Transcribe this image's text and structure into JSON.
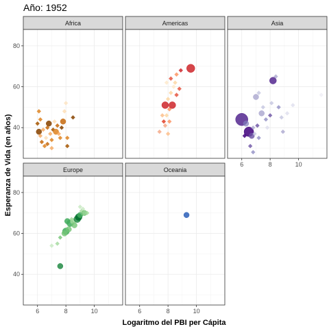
{
  "title": "Año: 1952",
  "chart_data": {
    "type": "scatter",
    "title": "Año: 1952",
    "xlabel": "Logaritmo del PBI per Cápita",
    "ylabel": "Esperanza de Vida (en años)",
    "xlim": [
      5.0,
      12.0
    ],
    "ylim": [
      25,
      88
    ],
    "x_ticks": [
      6,
      8,
      10
    ],
    "y_ticks": [
      40,
      60,
      80
    ],
    "grid": true,
    "facets": [
      {
        "name": "Africa",
        "points": [
          {
            "x": 6.1,
            "y": 48,
            "s": 3,
            "c": "#e08a2c",
            "a": 0.9
          },
          {
            "x": 6.0,
            "y": 42,
            "s": 3,
            "c": "#a85d0c",
            "a": 0.9
          },
          {
            "x": 6.1,
            "y": 38,
            "s": 4,
            "c": "#8c4a0a",
            "a": 0.9
          },
          {
            "x": 6.2,
            "y": 36,
            "s": 3,
            "c": "#f5a65b",
            "a": 0.8
          },
          {
            "x": 6.3,
            "y": 33,
            "s": 3,
            "c": "#c9711a",
            "a": 0.9
          },
          {
            "x": 6.5,
            "y": 31,
            "s": 3,
            "c": "#e08a2c",
            "a": 0.9
          },
          {
            "x": 6.4,
            "y": 39,
            "s": 3,
            "c": "#f5a65b",
            "a": 0.8
          },
          {
            "x": 6.6,
            "y": 35,
            "s": 3,
            "c": "#fdd9a8",
            "a": 0.7
          },
          {
            "x": 6.7,
            "y": 40,
            "s": 3,
            "c": "#c9711a",
            "a": 0.9
          },
          {
            "x": 6.8,
            "y": 42,
            "s": 4,
            "c": "#8c4a0a",
            "a": 0.9
          },
          {
            "x": 6.9,
            "y": 37,
            "s": 3,
            "c": "#f5a65b",
            "a": 0.8
          },
          {
            "x": 7.0,
            "y": 34,
            "s": 3,
            "c": "#e08a2c",
            "a": 0.9
          },
          {
            "x": 7.1,
            "y": 39,
            "s": 3,
            "c": "#a85d0c",
            "a": 0.9
          },
          {
            "x": 7.2,
            "y": 43,
            "s": 3,
            "c": "#fdd9a8",
            "a": 0.7
          },
          {
            "x": 7.3,
            "y": 38,
            "s": 4,
            "c": "#e08a2c",
            "a": 0.9
          },
          {
            "x": 7.4,
            "y": 41,
            "s": 3,
            "c": "#c9711a",
            "a": 0.9
          },
          {
            "x": 7.5,
            "y": 37,
            "s": 3,
            "c": "#f5a65b",
            "a": 0.8
          },
          {
            "x": 7.6,
            "y": 35,
            "s": 3,
            "c": "#e08a2c",
            "a": 0.9
          },
          {
            "x": 7.7,
            "y": 40,
            "s": 3,
            "c": "#8c4a0a",
            "a": 0.9
          },
          {
            "x": 7.8,
            "y": 43,
            "s": 4,
            "c": "#c9711a",
            "a": 0.9
          },
          {
            "x": 7.9,
            "y": 48,
            "s": 3,
            "c": "#fdd9a8",
            "a": 0.7
          },
          {
            "x": 8.0,
            "y": 52,
            "s": 3,
            "c": "#fde0b8",
            "a": 0.7
          },
          {
            "x": 8.1,
            "y": 35,
            "s": 3,
            "c": "#e08a2c",
            "a": 0.9
          },
          {
            "x": 8.1,
            "y": 31,
            "s": 3,
            "c": "#a85d0c",
            "a": 0.9
          },
          {
            "x": 8.5,
            "y": 45,
            "s": 3,
            "c": "#8c4a0a",
            "a": 0.9
          },
          {
            "x": 6.7,
            "y": 32,
            "s": 3,
            "c": "#c9711a",
            "a": 0.9
          },
          {
            "x": 7.0,
            "y": 30,
            "s": 3,
            "c": "#f5a65b",
            "a": 0.8
          },
          {
            "x": 6.2,
            "y": 44,
            "s": 3,
            "c": "#e08a2c",
            "a": 0.9
          }
        ]
      },
      {
        "name": "Americas",
        "points": [
          {
            "x": 7.4,
            "y": 38,
            "s": 3,
            "c": "#f4a582",
            "a": 0.8
          },
          {
            "x": 7.7,
            "y": 43,
            "s": 3,
            "c": "#e34a33",
            "a": 0.9
          },
          {
            "x": 7.8,
            "y": 41,
            "s": 3,
            "c": "#f4a582",
            "a": 0.8
          },
          {
            "x": 7.9,
            "y": 46,
            "s": 3,
            "c": "#fdd49e",
            "a": 0.8
          },
          {
            "x": 7.8,
            "y": 51,
            "s": 5,
            "c": "#cb181d",
            "a": 0.8
          },
          {
            "x": 8.0,
            "y": 54,
            "s": 3,
            "c": "#fdd49e",
            "a": 0.8
          },
          {
            "x": 8.1,
            "y": 49,
            "s": 3,
            "c": "#fc8d59",
            "a": 0.8
          },
          {
            "x": 8.2,
            "y": 57,
            "s": 3,
            "c": "#fdd49e",
            "a": 0.8
          },
          {
            "x": 8.3,
            "y": 51,
            "s": 5,
            "c": "#cb181d",
            "a": 0.8
          },
          {
            "x": 8.4,
            "y": 60,
            "s": 3,
            "c": "#fee8c8",
            "a": 0.8
          },
          {
            "x": 8.5,
            "y": 62,
            "s": 3,
            "c": "#fdd49e",
            "a": 0.8
          },
          {
            "x": 8.2,
            "y": 64,
            "s": 3,
            "c": "#e34a33",
            "a": 0.8
          },
          {
            "x": 8.6,
            "y": 66,
            "s": 3,
            "c": "#fc8d59",
            "a": 0.8
          },
          {
            "x": 8.6,
            "y": 56,
            "s": 3,
            "c": "#e34a33",
            "a": 0.8
          },
          {
            "x": 8.8,
            "y": 59,
            "s": 3,
            "c": "#e34a33",
            "a": 0.8
          },
          {
            "x": 8.1,
            "y": 43,
            "s": 3,
            "c": "#fc8d59",
            "a": 0.8
          },
          {
            "x": 7.6,
            "y": 46,
            "s": 3,
            "c": "#fdbb84",
            "a": 0.8
          },
          {
            "x": 8.9,
            "y": 68,
            "s": 3,
            "c": "#cb181d",
            "a": 0.8
          },
          {
            "x": 9.6,
            "y": 69,
            "s": 6,
            "c": "#cb181d",
            "a": 0.8
          },
          {
            "x": 8.0,
            "y": 37,
            "s": 3,
            "c": "#fdbb84",
            "a": 0.8
          },
          {
            "x": 7.9,
            "y": 62,
            "s": 3,
            "c": "#fee8c8",
            "a": 0.8
          }
        ]
      },
      {
        "name": "Asia",
        "points": [
          {
            "x": 6.0,
            "y": 44,
            "s": 9,
            "c": "#54278f",
            "a": 0.85
          },
          {
            "x": 6.5,
            "y": 38,
            "s": 7,
            "c": "#3f007d",
            "a": 0.85
          },
          {
            "x": 6.3,
            "y": 42,
            "s": 4,
            "c": "#807dba",
            "a": 0.7
          },
          {
            "x": 6.7,
            "y": 36,
            "s": 4,
            "c": "#6a51a3",
            "a": 0.8
          },
          {
            "x": 6.8,
            "y": 40,
            "s": 3,
            "c": "#9e9ac8",
            "a": 0.7
          },
          {
            "x": 6.9,
            "y": 37,
            "s": 3,
            "c": "#bcbddc",
            "a": 0.7
          },
          {
            "x": 7.1,
            "y": 41,
            "s": 3,
            "c": "#6a51a3",
            "a": 0.8
          },
          {
            "x": 7.2,
            "y": 35,
            "s": 3,
            "c": "#807dba",
            "a": 0.7
          },
          {
            "x": 7.4,
            "y": 47,
            "s": 4,
            "c": "#9e9ac8",
            "a": 0.7
          },
          {
            "x": 7.5,
            "y": 50,
            "s": 3,
            "c": "#bcbddc",
            "a": 0.7
          },
          {
            "x": 7.0,
            "y": 55,
            "s": 4,
            "c": "#9e9ac8",
            "a": 0.7
          },
          {
            "x": 7.2,
            "y": 57,
            "s": 3,
            "c": "#bcbddc",
            "a": 0.7
          },
          {
            "x": 7.7,
            "y": 44,
            "s": 3,
            "c": "#807dba",
            "a": 0.7
          },
          {
            "x": 7.8,
            "y": 40,
            "s": 3,
            "c": "#dadaeb",
            "a": 0.7
          },
          {
            "x": 8.0,
            "y": 46,
            "s": 3,
            "c": "#6a51a3",
            "a": 0.8
          },
          {
            "x": 8.1,
            "y": 52,
            "s": 3,
            "c": "#bcbddc",
            "a": 0.7
          },
          {
            "x": 8.2,
            "y": 63,
            "s": 5,
            "c": "#54278f",
            "a": 0.85
          },
          {
            "x": 8.4,
            "y": 65,
            "s": 3,
            "c": "#9e9ac8",
            "a": 0.7
          },
          {
            "x": 8.6,
            "y": 50,
            "s": 3,
            "c": "#807dba",
            "a": 0.7
          },
          {
            "x": 8.8,
            "y": 45,
            "s": 3,
            "c": "#bcbddc",
            "a": 0.7
          },
          {
            "x": 9.2,
            "y": 47,
            "s": 3,
            "c": "#dadaeb",
            "a": 0.7
          },
          {
            "x": 9.6,
            "y": 51,
            "s": 3,
            "c": "#dadaeb",
            "a": 0.7
          },
          {
            "x": 6.6,
            "y": 31,
            "s": 3,
            "c": "#6a51a3",
            "a": 0.8
          },
          {
            "x": 6.8,
            "y": 28,
            "s": 3,
            "c": "#807dba",
            "a": 0.7
          },
          {
            "x": 6.2,
            "y": 36,
            "s": 3,
            "c": "#3f007d",
            "a": 0.85
          },
          {
            "x": 8.9,
            "y": 38,
            "s": 3,
            "c": "#9e9ac8",
            "a": 0.7
          },
          {
            "x": 11.6,
            "y": 56,
            "s": 3,
            "c": "#efedf5",
            "a": 0.8
          }
        ]
      },
      {
        "name": "Europe",
        "points": [
          {
            "x": 7.6,
            "y": 44,
            "s": 4,
            "c": "#238b45",
            "a": 0.85
          },
          {
            "x": 7.0,
            "y": 54,
            "s": 3,
            "c": "#c7e9c0",
            "a": 0.8
          },
          {
            "x": 7.4,
            "y": 55,
            "s": 3,
            "c": "#a1d99b",
            "a": 0.8
          },
          {
            "x": 7.6,
            "y": 58,
            "s": 3,
            "c": "#74c476",
            "a": 0.8
          },
          {
            "x": 8.0,
            "y": 61,
            "s": 5,
            "c": "#41ab5d",
            "a": 0.85
          },
          {
            "x": 8.2,
            "y": 62,
            "s": 4,
            "c": "#74c476",
            "a": 0.8
          },
          {
            "x": 8.3,
            "y": 65,
            "s": 5,
            "c": "#41ab5d",
            "a": 0.85
          },
          {
            "x": 8.5,
            "y": 66,
            "s": 4,
            "c": "#a1d99b",
            "a": 0.8
          },
          {
            "x": 8.6,
            "y": 64,
            "s": 4,
            "c": "#74c476",
            "a": 0.8
          },
          {
            "x": 8.8,
            "y": 67,
            "s": 5,
            "c": "#238b45",
            "a": 0.85
          },
          {
            "x": 8.9,
            "y": 68,
            "s": 5,
            "c": "#006d2c",
            "a": 0.85
          },
          {
            "x": 9.0,
            "y": 69,
            "s": 4,
            "c": "#41ab5d",
            "a": 0.8
          },
          {
            "x": 9.1,
            "y": 71,
            "s": 3,
            "c": "#a1d99b",
            "a": 0.8
          },
          {
            "x": 9.2,
            "y": 72,
            "s": 3,
            "c": "#c7e9c0",
            "a": 0.8
          },
          {
            "x": 9.3,
            "y": 70,
            "s": 4,
            "c": "#74c476",
            "a": 0.8
          },
          {
            "x": 9.5,
            "y": 70,
            "s": 3,
            "c": "#a1d99b",
            "a": 0.8
          },
          {
            "x": 8.1,
            "y": 66,
            "s": 4,
            "c": "#41ab5d",
            "a": 0.85
          },
          {
            "x": 7.9,
            "y": 60,
            "s": 4,
            "c": "#74c476",
            "a": 0.8
          },
          {
            "x": 9.0,
            "y": 73,
            "s": 3,
            "c": "#c7e9c0",
            "a": 0.8
          },
          {
            "x": 8.4,
            "y": 67,
            "s": 3,
            "c": "#a1d99b",
            "a": 0.8
          }
        ]
      },
      {
        "name": "Oceania",
        "points": [
          {
            "x": 9.3,
            "y": 69,
            "s": 4,
            "c": "#2c5fb8",
            "a": 0.85
          }
        ]
      }
    ]
  }
}
